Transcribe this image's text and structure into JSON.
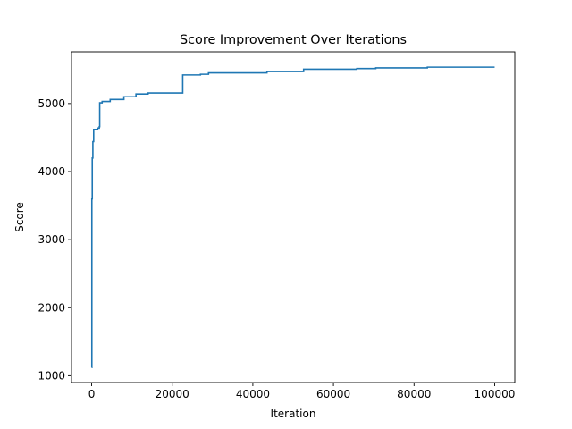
{
  "chart_data": {
    "type": "line",
    "title": "Score Improvement Over Iterations",
    "xlabel": "Iteration",
    "ylabel": "Score",
    "xlim": [
      -5000,
      105000
    ],
    "ylim": [
      900,
      5760
    ],
    "x_ticks": [
      0,
      20000,
      40000,
      60000,
      80000,
      100000
    ],
    "x_tick_labels": [
      "0",
      "20000",
      "40000",
      "60000",
      "80000",
      "100000"
    ],
    "y_ticks": [
      1000,
      2000,
      3000,
      4000,
      5000
    ],
    "y_tick_labels": [
      "1000",
      "2000",
      "3000",
      "4000",
      "5000"
    ],
    "grid": false,
    "line_color": "#1f77b4",
    "series": [
      {
        "step": true,
        "points": [
          [
            0,
            1120
          ],
          [
            50,
            3600
          ],
          [
            150,
            4200
          ],
          [
            300,
            4440
          ],
          [
            500,
            4620
          ],
          [
            1500,
            4640
          ],
          [
            1900,
            4660
          ],
          [
            2000,
            5010
          ],
          [
            2600,
            5030
          ],
          [
            4600,
            5060
          ],
          [
            8000,
            5100
          ],
          [
            11000,
            5140
          ],
          [
            14000,
            5155
          ],
          [
            22600,
            5420
          ],
          [
            27000,
            5430
          ],
          [
            29000,
            5450
          ],
          [
            43500,
            5470
          ],
          [
            52600,
            5505
          ],
          [
            65800,
            5515
          ],
          [
            70500,
            5525
          ],
          [
            83300,
            5535
          ],
          [
            100000,
            5535
          ]
        ]
      }
    ]
  }
}
